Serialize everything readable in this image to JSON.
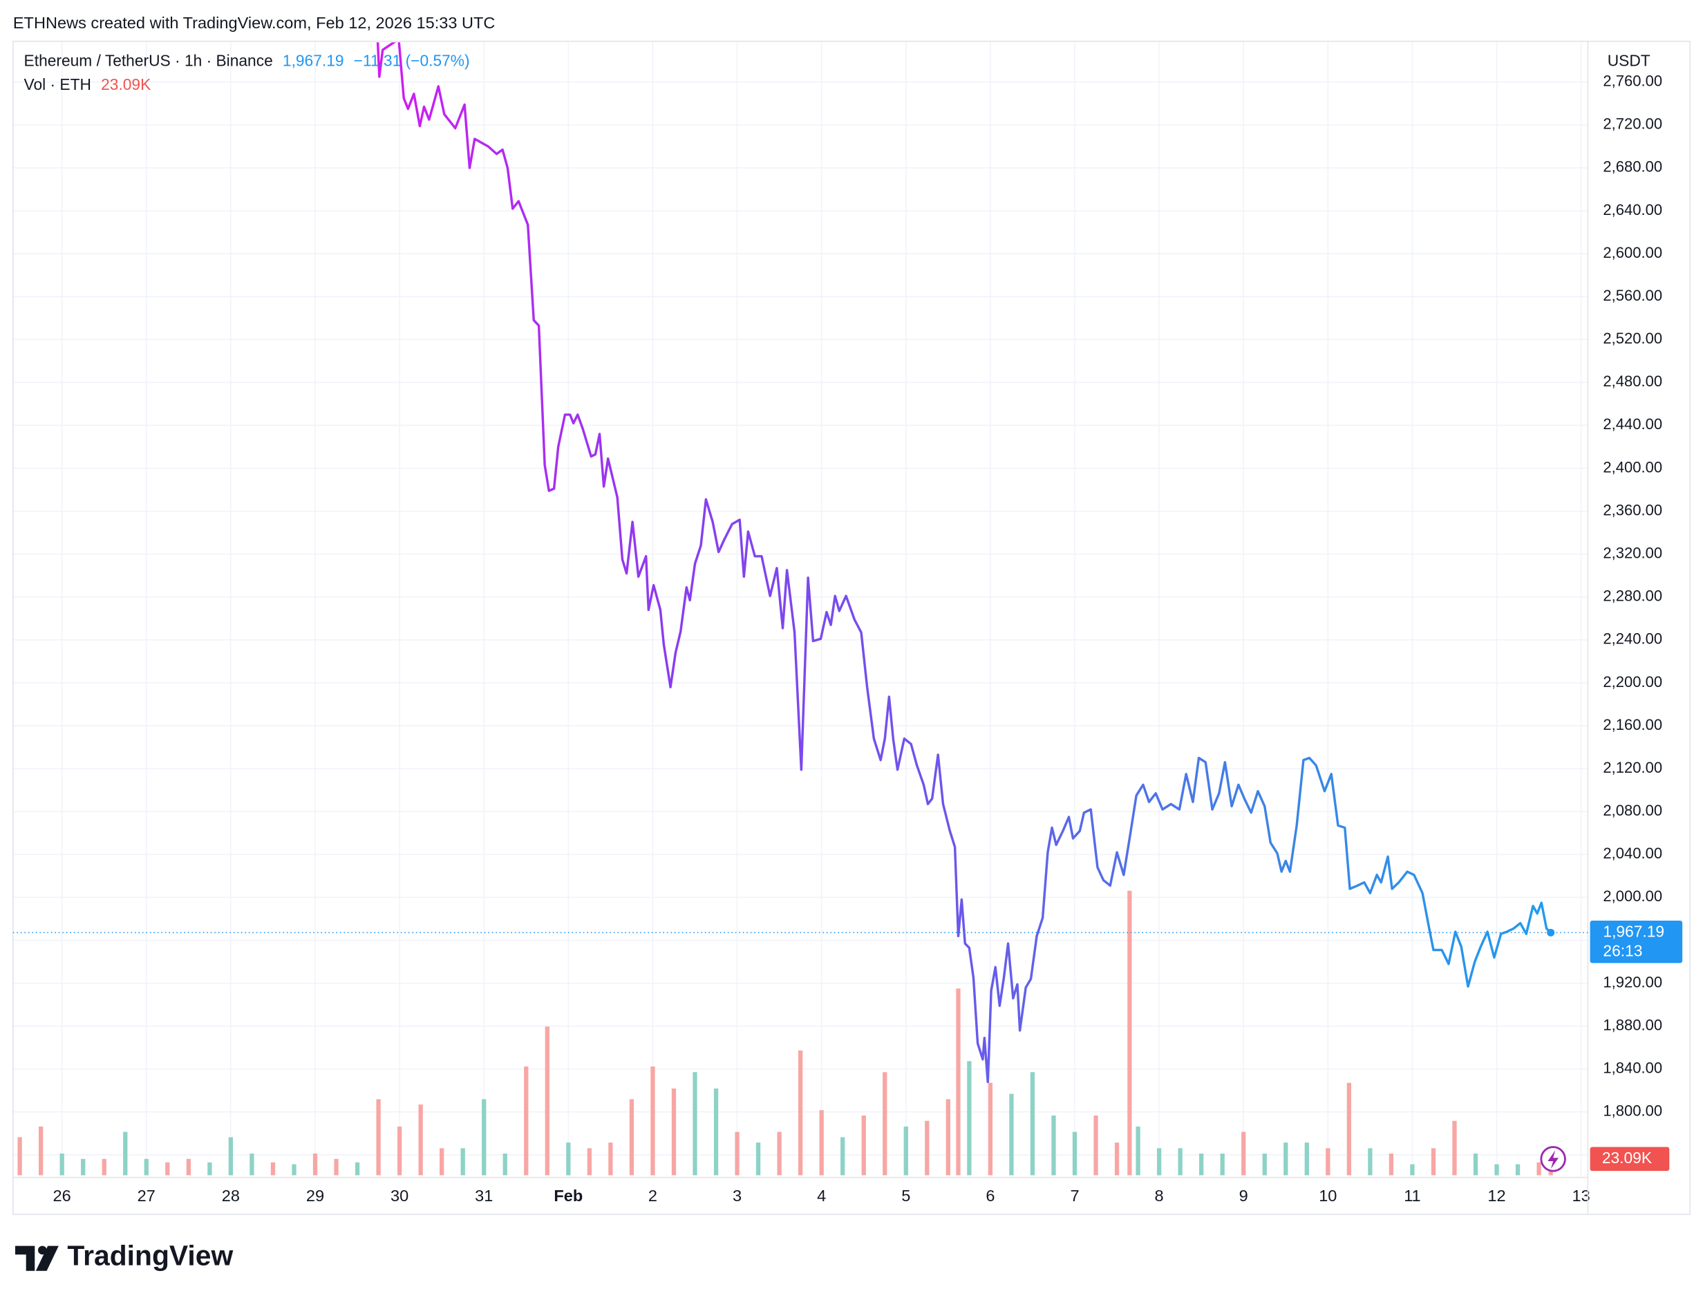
{
  "header": "ETHNews created with TradingView.com, Feb 12, 2026 15:33 UTC",
  "footer": "TradingView",
  "chart_data": {
    "type": "line",
    "currency": "USDT",
    "change_label": "−11.31 (−0.57%)",
    "countdown": "26:13",
    "last_price": {
      "value": 1967.19,
      "label": "1,967.19"
    },
    "gradient": [
      "#d21cf0",
      "#8a3cf0",
      "#6a58ec",
      "#3f82e4",
      "#1f9cf0"
    ],
    "grid": true,
    "xlim": [
      25.42,
      44.08
    ],
    "xticks": [
      26,
      27,
      28,
      29,
      30,
      31,
      {
        "value": 32,
        "label": "Feb"
      },
      {
        "value": 33,
        "label": "2"
      },
      {
        "value": 34,
        "label": "3"
      },
      {
        "value": 35,
        "label": "4"
      },
      {
        "value": 36,
        "label": "5"
      },
      {
        "value": 37,
        "label": "6"
      },
      {
        "value": 38,
        "label": "7"
      },
      {
        "value": 39,
        "label": "8"
      },
      {
        "value": 40,
        "label": "9"
      },
      {
        "value": 41,
        "label": "10"
      },
      {
        "value": 42,
        "label": "11"
      },
      {
        "value": 43,
        "label": "12"
      },
      {
        "value": 44,
        "label": "13"
      }
    ],
    "ylim": [
      1741,
      2796
    ],
    "yticks": [
      {
        "value": 1760,
        "label": "1,760.00"
      },
      {
        "value": 1800,
        "label": "1,800.00"
      },
      {
        "value": 1840,
        "label": "1,840.00"
      },
      {
        "value": 1880,
        "label": "1,880.00"
      },
      {
        "value": 1920,
        "label": "1,920.00"
      },
      {
        "value": 1960,
        "label": "1,960.00"
      },
      {
        "value": 2000,
        "label": "2,000.00"
      },
      {
        "value": 2040,
        "label": "2,040.00"
      },
      {
        "value": 2080,
        "label": "2,080.00"
      },
      {
        "value": 2120,
        "label": "2,120.00"
      },
      {
        "value": 2160,
        "label": "2,160.00"
      },
      {
        "value": 2200,
        "label": "2,200.00"
      },
      {
        "value": 2240,
        "label": "2,240.00"
      },
      {
        "value": 2280,
        "label": "2,280.00"
      },
      {
        "value": 2320,
        "label": "2,320.00"
      },
      {
        "value": 2360,
        "label": "2,360.00"
      },
      {
        "value": 2400,
        "label": "2,400.00"
      },
      {
        "value": 2440,
        "label": "2,440.00"
      },
      {
        "value": 2480,
        "label": "2,480.00"
      },
      {
        "value": 2520,
        "label": "2,520.00"
      },
      {
        "value": 2560,
        "label": "2,560.00"
      },
      {
        "value": 2600,
        "label": "2,600.00"
      },
      {
        "value": 2640,
        "label": "2,640.00"
      },
      {
        "value": 2680,
        "label": "2,680.00"
      },
      {
        "value": 2720,
        "label": "2,720.00"
      },
      {
        "value": 2760,
        "label": "2,760.00"
      }
    ],
    "x": [
      29.74,
      29.76,
      29.8,
      29.99,
      30.05,
      30.1,
      30.17,
      30.24,
      30.29,
      30.35,
      30.46,
      30.53,
      30.66,
      30.77,
      30.83,
      30.89,
      31.05,
      31.15,
      31.22,
      31.28,
      31.34,
      31.41,
      31.52,
      31.59,
      31.65,
      31.72,
      31.77,
      31.83,
      31.88,
      31.96,
      32.02,
      32.06,
      32.11,
      32.17,
      32.27,
      32.32,
      32.37,
      32.42,
      32.47,
      32.58,
      32.64,
      32.69,
      32.76,
      32.83,
      32.92,
      32.95,
      33.01,
      33.09,
      33.13,
      33.21,
      33.27,
      33.33,
      33.4,
      33.44,
      33.5,
      33.57,
      33.63,
      33.71,
      33.78,
      33.85,
      33.94,
      34.03,
      34.08,
      34.13,
      34.21,
      34.29,
      34.39,
      34.47,
      34.54,
      34.59,
      34.68,
      34.76,
      34.84,
      34.9,
      34.99,
      35.06,
      35.11,
      35.16,
      35.21,
      35.29,
      35.39,
      35.47,
      35.54,
      35.62,
      35.7,
      35.75,
      35.8,
      35.85,
      35.9,
      35.98,
      36.06,
      36.13,
      36.21,
      36.26,
      36.31,
      36.38,
      36.44,
      36.52,
      36.58,
      36.62,
      36.66,
      36.7,
      36.75,
      36.8,
      36.85,
      36.91,
      36.93,
      36.97,
      37.01,
      37.06,
      37.11,
      37.16,
      37.21,
      37.27,
      37.32,
      37.35,
      37.42,
      37.48,
      37.55,
      37.62,
      37.68,
      37.73,
      37.78,
      37.86,
      37.93,
      37.98,
      38.06,
      38.11,
      38.19,
      38.27,
      38.34,
      38.42,
      38.5,
      38.58,
      38.65,
      38.73,
      38.81,
      38.88,
      38.96,
      39.04,
      39.14,
      39.24,
      39.32,
      39.4,
      39.47,
      39.55,
      39.63,
      39.71,
      39.78,
      39.86,
      39.94,
      40.01,
      40.09,
      40.17,
      40.25,
      40.32,
      40.4,
      40.45,
      40.5,
      40.55,
      40.63,
      40.71,
      40.78,
      40.86,
      40.96,
      41.04,
      41.12,
      41.2,
      41.26,
      41.35,
      41.43,
      41.5,
      41.58,
      41.63,
      41.71,
      41.76,
      41.84,
      41.94,
      42.02,
      42.12,
      42.2,
      42.25,
      42.35,
      42.43,
      42.51,
      42.58,
      42.66,
      42.74,
      42.81,
      42.89,
      42.97,
      43.05,
      43.12,
      43.2,
      43.28,
      43.35,
      43.43,
      43.48,
      43.53,
      43.59,
      43.64
    ],
    "series": [
      {
        "name": "Ethereum / TetherUS · 1h · Binance",
        "color": "#2196f3",
        "values": [
          2800,
          2765,
          2790,
          2800,
          2745,
          2735,
          2749,
          2719,
          2737,
          2725,
          2756,
          2730,
          2717,
          2739,
          2680,
          2707,
          2700,
          2693,
          2697,
          2680,
          2642,
          2649,
          2627,
          2538,
          2533,
          2403,
          2379,
          2381,
          2420,
          2450,
          2450,
          2442,
          2450,
          2437,
          2411,
          2413,
          2432,
          2383,
          2409,
          2373,
          2315,
          2302,
          2350,
          2299,
          2318,
          2268,
          2291,
          2268,
          2236,
          2196,
          2228,
          2248,
          2289,
          2277,
          2311,
          2328,
          2371,
          2350,
          2322,
          2334,
          2348,
          2352,
          2299,
          2341,
          2318,
          2318,
          2281,
          2307,
          2251,
          2305,
          2247,
          2119,
          2298,
          2239,
          2241,
          2266,
          2254,
          2281,
          2267,
          2281,
          2259,
          2247,
          2196,
          2148,
          2128,
          2148,
          2187,
          2147,
          2119,
          2148,
          2143,
          2123,
          2105,
          2087,
          2092,
          2133,
          2087,
          2062,
          2047,
          1964,
          1998,
          1957,
          1953,
          1925,
          1864,
          1849,
          1869,
          1828,
          1913,
          1935,
          1899,
          1925,
          1957,
          1906,
          1919,
          1876,
          1916,
          1924,
          1964,
          1981,
          2042,
          2065,
          2049,
          2062,
          2075,
          2055,
          2062,
          2079,
          2082,
          2028,
          2016,
          2011,
          2042,
          2021,
          2055,
          2095,
          2105,
          2089,
          2097,
          2082,
          2087,
          2082,
          2115,
          2089,
          2130,
          2126,
          2082,
          2097,
          2126,
          2085,
          2105,
          2092,
          2079,
          2099,
          2085,
          2051,
          2041,
          2024,
          2034,
          2024,
          2067,
          2128,
          2130,
          2123,
          2099,
          2115,
          2067,
          2065,
          2008,
          2011,
          2014,
          2004,
          2021,
          2014,
          2038,
          2008,
          2014,
          2024,
          2021,
          2004,
          1971,
          1951,
          1951,
          1938,
          1968,
          1954,
          1917,
          1940,
          1954,
          1968,
          1944,
          1966,
          1968,
          1971,
          1976,
          1966,
          1992,
          1985,
          1995,
          1971,
          1967.19
        ]
      }
    ],
    "volume": {
      "name": "Vol · ETH",
      "last": {
        "value": 23090,
        "label": "23.09K"
      },
      "ylim": [
        0,
        3600000
      ],
      "x": [
        25.5,
        25.75,
        26,
        26.25,
        26.5,
        26.75,
        27,
        27.25,
        27.5,
        27.75,
        28,
        28.25,
        28.5,
        28.75,
        29,
        29.25,
        29.5,
        29.75,
        30,
        30.25,
        30.5,
        30.75,
        31,
        31.25,
        31.5,
        31.75,
        32,
        32.25,
        32.5,
        32.75,
        33,
        33.25,
        33.5,
        33.75,
        34,
        34.25,
        34.5,
        34.75,
        35,
        35.25,
        35.5,
        35.75,
        36,
        36.25,
        36.5,
        36.62,
        36.75,
        37,
        37.25,
        37.5,
        37.75,
        38,
        38.25,
        38.5,
        38.65,
        38.75,
        39,
        39.25,
        39.5,
        39.75,
        40,
        40.25,
        40.5,
        40.75,
        41,
        41.25,
        41.5,
        41.75,
        42,
        42.25,
        42.5,
        42.75,
        43,
        43.25,
        43.5,
        43.64
      ],
      "values": [
        121000,
        155000,
        69000,
        52000,
        52000,
        138000,
        52000,
        41000,
        52000,
        41000,
        121000,
        69000,
        41000,
        35000,
        69000,
        52000,
        41000,
        242000,
        155000,
        225000,
        86000,
        86000,
        242000,
        69000,
        346000,
        473000,
        104000,
        86000,
        104000,
        242000,
        346000,
        276000,
        328000,
        276000,
        138000,
        104000,
        138000,
        397000,
        207000,
        121000,
        190000,
        328000,
        155000,
        173000,
        242000,
        594000,
        363000,
        294000,
        259000,
        328000,
        190000,
        138000,
        190000,
        104000,
        905000,
        155000,
        86000,
        86000,
        69000,
        69000,
        138000,
        69000,
        104000,
        104000,
        86000,
        294000,
        86000,
        69000,
        35000,
        86000,
        173000,
        69000,
        35000,
        35000,
        41000,
        23090
      ],
      "colors": [
        "#f7a6a4",
        "#f7a6a4",
        "#8dd2c6",
        "#8dd2c6",
        "#f7a6a4",
        "#8dd2c6",
        "#8dd2c6",
        "#f7a6a4",
        "#f7a6a4",
        "#8dd2c6",
        "#8dd2c6",
        "#8dd2c6",
        "#f7a6a4",
        "#8dd2c6",
        "#f7a6a4",
        "#f7a6a4",
        "#8dd2c6",
        "#f7a6a4",
        "#f7a6a4",
        "#f7a6a4",
        "#f7a6a4",
        "#8dd2c6",
        "#8dd2c6",
        "#8dd2c6",
        "#f7a6a4",
        "#f7a6a4",
        "#8dd2c6",
        "#f7a6a4",
        "#f7a6a4",
        "#f7a6a4",
        "#f7a6a4",
        "#f7a6a4",
        "#8dd2c6",
        "#8dd2c6",
        "#f7a6a4",
        "#8dd2c6",
        "#f7a6a4",
        "#f7a6a4",
        "#f7a6a4",
        "#8dd2c6",
        "#f7a6a4",
        "#f7a6a4",
        "#8dd2c6",
        "#f7a6a4",
        "#f7a6a4",
        "#f7a6a4",
        "#8dd2c6",
        "#f7a6a4",
        "#8dd2c6",
        "#8dd2c6",
        "#8dd2c6",
        "#8dd2c6",
        "#f7a6a4",
        "#f7a6a4",
        "#f7a6a4",
        "#8dd2c6",
        "#8dd2c6",
        "#8dd2c6",
        "#8dd2c6",
        "#8dd2c6",
        "#f7a6a4",
        "#8dd2c6",
        "#8dd2c6",
        "#8dd2c6",
        "#f7a6a4",
        "#f7a6a4",
        "#8dd2c6",
        "#f7a6a4",
        "#8dd2c6",
        "#f7a6a4",
        "#f7a6a4",
        "#8dd2c6",
        "#8dd2c6",
        "#8dd2c6",
        "#f7a6a4",
        "#f7a6a4"
      ]
    }
  }
}
